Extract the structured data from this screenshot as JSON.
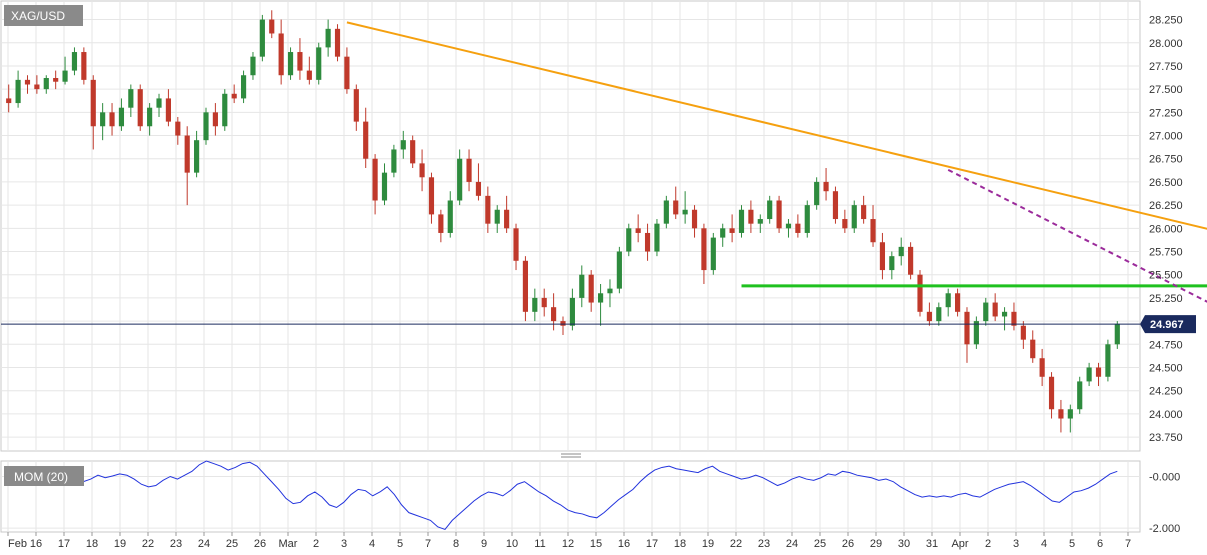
{
  "symbol": "XAG/USD",
  "indicator_label": "MOM (20)",
  "last_price_label": "24.967",
  "chart_data": [
    {
      "type": "candlestick",
      "title": "XAG/USD",
      "ylim": [
        23.6,
        28.45
      ],
      "yticks": [
        "28.250",
        "28.000",
        "27.750",
        "27.500",
        "27.250",
        "27.000",
        "26.750",
        "26.500",
        "26.250",
        "26.000",
        "25.750",
        "25.500",
        "25.250",
        "25.000",
        "24.750",
        "24.500",
        "24.250",
        "24.000",
        "23.750"
      ],
      "x_tick_labels": [
        "Feb",
        "16",
        "17",
        "18",
        "19",
        "22",
        "23",
        "24",
        "25",
        "26",
        "Mar",
        "2",
        "3",
        "4",
        "5",
        "7",
        "8",
        "9",
        "10",
        "11",
        "12",
        "15",
        "16",
        "17",
        "18",
        "19",
        "22",
        "23",
        "24",
        "25",
        "26",
        "29",
        "30",
        "31",
        "Apr",
        "2",
        "3",
        "4",
        "5",
        "6",
        "7"
      ],
      "last_price": 24.967,
      "ohlc": [
        [
          27.4,
          27.55,
          27.25,
          27.35
        ],
        [
          27.35,
          27.7,
          27.3,
          27.6
        ],
        [
          27.6,
          27.65,
          27.45,
          27.55
        ],
        [
          27.55,
          27.65,
          27.45,
          27.5
        ],
        [
          27.5,
          27.65,
          27.45,
          27.62
        ],
        [
          27.62,
          27.7,
          27.5,
          27.58
        ],
        [
          27.58,
          27.85,
          27.55,
          27.7
        ],
        [
          27.7,
          27.95,
          27.65,
          27.9
        ],
        [
          27.9,
          27.95,
          27.55,
          27.6
        ],
        [
          27.6,
          27.65,
          26.85,
          27.1
        ],
        [
          27.1,
          27.35,
          26.95,
          27.25
        ],
        [
          27.25,
          27.35,
          27.0,
          27.1
        ],
        [
          27.1,
          27.4,
          27.05,
          27.3
        ],
        [
          27.3,
          27.55,
          27.2,
          27.5
        ],
        [
          27.5,
          27.55,
          27.05,
          27.1
        ],
        [
          27.1,
          27.35,
          27.0,
          27.3
        ],
        [
          27.3,
          27.45,
          27.2,
          27.4
        ],
        [
          27.4,
          27.5,
          27.1,
          27.15
        ],
        [
          27.15,
          27.2,
          26.9,
          27.0
        ],
        [
          27.0,
          27.1,
          26.25,
          26.6
        ],
        [
          26.6,
          27.05,
          26.55,
          26.95
        ],
        [
          26.95,
          27.3,
          26.9,
          27.25
        ],
        [
          27.25,
          27.35,
          27.0,
          27.1
        ],
        [
          27.1,
          27.5,
          27.05,
          27.45
        ],
        [
          27.45,
          27.55,
          27.35,
          27.4
        ],
        [
          27.4,
          27.7,
          27.35,
          27.65
        ],
        [
          27.65,
          27.9,
          27.6,
          27.85
        ],
        [
          27.85,
          28.3,
          27.8,
          28.25
        ],
        [
          28.25,
          28.35,
          28.05,
          28.1
        ],
        [
          28.1,
          28.25,
          27.55,
          27.65
        ],
        [
          27.65,
          27.95,
          27.6,
          27.9
        ],
        [
          27.9,
          28.05,
          27.6,
          27.7
        ],
        [
          27.7,
          27.85,
          27.55,
          27.6
        ],
        [
          27.6,
          28.0,
          27.55,
          27.95
        ],
        [
          27.95,
          28.25,
          27.85,
          28.15
        ],
        [
          28.15,
          28.2,
          27.8,
          27.85
        ],
        [
          27.85,
          27.95,
          27.45,
          27.5
        ],
        [
          27.5,
          27.55,
          27.05,
          27.15
        ],
        [
          27.15,
          27.3,
          26.65,
          26.75
        ],
        [
          26.75,
          26.8,
          26.15,
          26.3
        ],
        [
          26.3,
          26.7,
          26.25,
          26.6
        ],
        [
          26.6,
          26.9,
          26.55,
          26.85
        ],
        [
          26.85,
          27.05,
          26.75,
          26.95
        ],
        [
          26.95,
          27.0,
          26.65,
          26.7
        ],
        [
          26.7,
          26.85,
          26.4,
          26.55
        ],
        [
          26.55,
          26.6,
          26.05,
          26.15
        ],
        [
          26.15,
          26.2,
          25.85,
          25.95
        ],
        [
          25.95,
          26.4,
          25.9,
          26.3
        ],
        [
          26.3,
          26.85,
          26.25,
          26.75
        ],
        [
          26.75,
          26.85,
          26.4,
          26.5
        ],
        [
          26.5,
          26.7,
          26.3,
          26.35
        ],
        [
          26.35,
          26.45,
          25.95,
          26.05
        ],
        [
          26.05,
          26.25,
          25.95,
          26.2
        ],
        [
          26.2,
          26.35,
          25.95,
          26.0
        ],
        [
          26.0,
          26.05,
          25.55,
          25.65
        ],
        [
          25.65,
          25.7,
          25.0,
          25.1
        ],
        [
          25.1,
          25.35,
          25.0,
          25.25
        ],
        [
          25.25,
          25.35,
          25.05,
          25.15
        ],
        [
          25.15,
          25.3,
          24.9,
          25.0
        ],
        [
          25.0,
          25.05,
          24.85,
          24.95
        ],
        [
          24.95,
          25.35,
          24.9,
          25.25
        ],
        [
          25.25,
          25.6,
          25.15,
          25.5
        ],
        [
          25.5,
          25.55,
          25.1,
          25.2
        ],
        [
          25.2,
          25.4,
          24.95,
          25.3
        ],
        [
          25.3,
          25.45,
          25.15,
          25.35
        ],
        [
          25.35,
          25.8,
          25.3,
          25.75
        ],
        [
          25.75,
          26.05,
          25.7,
          26.0
        ],
        [
          26.0,
          26.15,
          25.85,
          25.95
        ],
        [
          25.95,
          26.05,
          25.65,
          25.75
        ],
        [
          25.75,
          26.1,
          25.7,
          26.05
        ],
        [
          26.05,
          26.35,
          26.0,
          26.3
        ],
        [
          26.3,
          26.45,
          26.1,
          26.15
        ],
        [
          26.15,
          26.4,
          26.05,
          26.2
        ],
        [
          26.2,
          26.25,
          25.9,
          26.0
        ],
        [
          26.0,
          26.05,
          25.4,
          25.55
        ],
        [
          25.55,
          25.95,
          25.5,
          25.9
        ],
        [
          25.9,
          26.05,
          25.8,
          26.0
        ],
        [
          26.0,
          26.15,
          25.85,
          25.95
        ],
        [
          25.95,
          26.25,
          25.9,
          26.2
        ],
        [
          26.2,
          26.3,
          25.95,
          26.05
        ],
        [
          26.05,
          26.15,
          25.95,
          26.1
        ],
        [
          26.1,
          26.35,
          26.05,
          26.3
        ],
        [
          26.3,
          26.35,
          25.95,
          26.0
        ],
        [
          26.0,
          26.1,
          25.9,
          26.05
        ],
        [
          26.05,
          26.15,
          25.9,
          25.95
        ],
        [
          25.95,
          26.3,
          25.9,
          26.25
        ],
        [
          26.25,
          26.55,
          26.2,
          26.5
        ],
        [
          26.5,
          26.65,
          26.3,
          26.4
        ],
        [
          26.4,
          26.45,
          26.05,
          26.1
        ],
        [
          26.1,
          26.2,
          25.95,
          26.0
        ],
        [
          26.0,
          26.3,
          25.95,
          26.25
        ],
        [
          26.25,
          26.35,
          26.05,
          26.1
        ],
        [
          26.1,
          26.25,
          25.8,
          25.85
        ],
        [
          25.85,
          25.95,
          25.45,
          25.55
        ],
        [
          25.55,
          25.75,
          25.45,
          25.7
        ],
        [
          25.7,
          25.9,
          25.6,
          25.8
        ],
        [
          25.8,
          25.85,
          25.45,
          25.5
        ],
        [
          25.5,
          25.55,
          25.05,
          25.1
        ],
        [
          25.1,
          25.2,
          24.95,
          25.0
        ],
        [
          25.0,
          25.2,
          24.95,
          25.15
        ],
        [
          25.15,
          25.35,
          25.05,
          25.3
        ],
        [
          25.3,
          25.35,
          25.05,
          25.1
        ],
        [
          25.1,
          25.15,
          24.55,
          24.75
        ],
        [
          24.75,
          25.05,
          24.7,
          25.0
        ],
        [
          25.0,
          25.25,
          24.95,
          25.2
        ],
        [
          25.2,
          25.3,
          25.0,
          25.05
        ],
        [
          25.05,
          25.15,
          24.9,
          25.1
        ],
        [
          25.1,
          25.2,
          24.9,
          24.95
        ],
        [
          24.95,
          25.0,
          24.7,
          24.8
        ],
        [
          24.8,
          24.9,
          24.55,
          24.6
        ],
        [
          24.6,
          24.7,
          24.3,
          24.4
        ],
        [
          24.4,
          24.45,
          23.95,
          24.05
        ],
        [
          24.05,
          24.15,
          23.8,
          23.95
        ],
        [
          23.95,
          24.1,
          23.8,
          24.05
        ],
        [
          24.05,
          24.4,
          24.0,
          24.35
        ],
        [
          24.35,
          24.55,
          24.3,
          24.5
        ],
        [
          24.5,
          24.55,
          24.3,
          24.4
        ],
        [
          24.4,
          24.8,
          24.35,
          24.75
        ],
        [
          24.75,
          25.0,
          24.7,
          24.97
        ]
      ],
      "trendlines": [
        {
          "color": "#f5a00f",
          "style": "solid",
          "from": {
            "bar": 36,
            "price": 28.22
          },
          "to": {
            "bar": 157,
            "price": 25.28
          }
        },
        {
          "color": "#1fc11f",
          "style": "solid",
          "from": {
            "bar": 78,
            "price": 25.38
          },
          "to": {
            "bar": 149,
            "price": 25.38
          }
        },
        {
          "color": "#9b2b9b",
          "style": "dashed",
          "from": {
            "bar": 100,
            "price": 26.63
          },
          "to": {
            "bar": 151,
            "price": 24.0
          }
        }
      ]
    },
    {
      "type": "line",
      "title": "MOM (20)",
      "ylim": [
        -2.15,
        0.6
      ],
      "yticks": [
        "-0.000",
        "-2.000"
      ],
      "series": [
        {
          "values": [
            0.1,
            0.05,
            0.12,
            0.1,
            0.05,
            0.12,
            0.18,
            0.22,
            0.15,
            0.0,
            -0.15,
            -0.2,
            -0.1,
            0.05,
            -0.05,
            0.02,
            0.1,
            0.05,
            -0.1,
            -0.3,
            -0.4,
            -0.35,
            -0.15,
            0.0,
            -0.1,
            0.05,
            0.2,
            0.45,
            0.6,
            0.5,
            0.4,
            0.25,
            0.35,
            0.5,
            0.55,
            0.4,
            0.1,
            -0.2,
            -0.5,
            -0.85,
            -1.05,
            -1.0,
            -0.75,
            -0.6,
            -0.8,
            -1.1,
            -1.2,
            -1.0,
            -0.7,
            -0.5,
            -0.55,
            -0.75,
            -0.6,
            -0.4,
            -0.7,
            -1.1,
            -1.4,
            -1.5,
            -1.6,
            -1.7,
            -1.95,
            -2.05,
            -1.7,
            -1.45,
            -1.2,
            -0.95,
            -0.75,
            -0.6,
            -0.65,
            -0.75,
            -0.55,
            -0.3,
            -0.2,
            -0.4,
            -0.6,
            -0.75,
            -0.95,
            -1.1,
            -1.3,
            -1.4,
            -1.45,
            -1.55,
            -1.6,
            -1.4,
            -1.15,
            -0.9,
            -0.7,
            -0.5,
            -0.2,
            0.05,
            0.25,
            0.35,
            0.4,
            0.3,
            0.25,
            0.2,
            0.15,
            0.3,
            0.4,
            0.2,
            0.1,
            0.0,
            -0.1,
            -0.05,
            0.05,
            -0.05,
            -0.2,
            -0.35,
            -0.25,
            -0.1,
            0.0,
            -0.1,
            -0.15,
            -0.05,
            0.1,
            0.05,
            0.2,
            0.15,
            0.05,
            0.0,
            -0.05,
            -0.15,
            -0.1,
            -0.2,
            -0.4,
            -0.55,
            -0.7,
            -0.8,
            -0.75,
            -0.8,
            -0.75,
            -0.8,
            -0.7,
            -0.65,
            -0.75,
            -0.8,
            -0.65,
            -0.5,
            -0.4,
            -0.3,
            -0.25,
            -0.2,
            -0.35,
            -0.55,
            -0.75,
            -0.95,
            -1.0,
            -0.8,
            -0.6,
            -0.55,
            -0.45,
            -0.3,
            -0.1,
            0.1,
            0.2
          ]
        }
      ]
    }
  ]
}
